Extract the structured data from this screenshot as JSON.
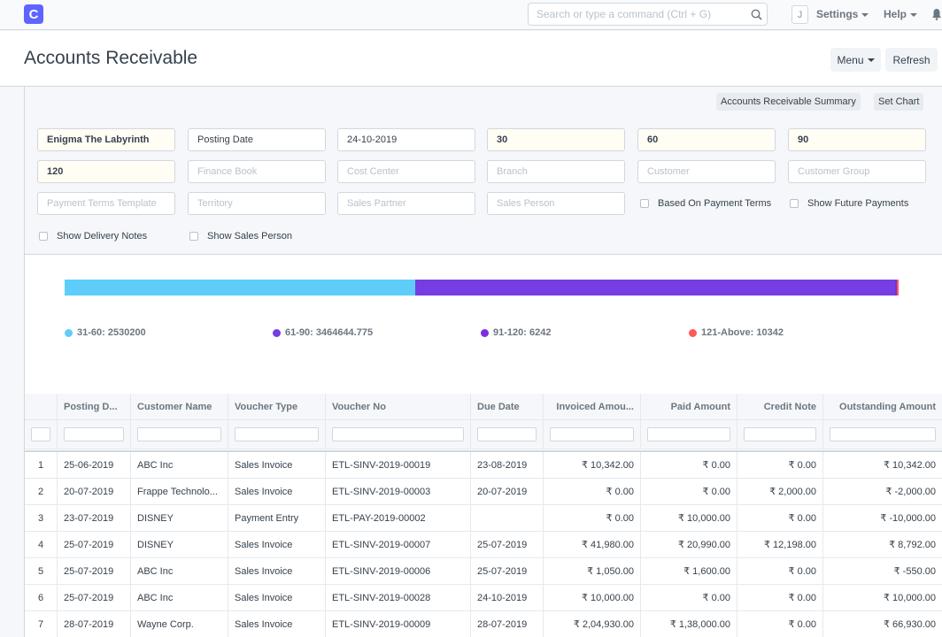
{
  "navbar": {
    "logo_letter": "C",
    "search_placeholder": "Search or type a command (Ctrl + G)",
    "avatar_letter": "J",
    "settings": "Settings",
    "help": "Help"
  },
  "page": {
    "title": "Accounts Receivable",
    "menu_label": "Menu",
    "refresh_label": "Refresh"
  },
  "report_buttons": {
    "summary": "Accounts Receivable Summary",
    "set_chart": "Set Chart"
  },
  "filters": {
    "company": "Enigma The Labyrinth",
    "ageing_based_on": "Posting Date",
    "report_date": "24-10-2019",
    "range1": "30",
    "range2": "60",
    "range3": "90",
    "range4": "120",
    "finance_book": "Finance Book",
    "cost_center": "Cost Center",
    "branch": "Branch",
    "customer": "Customer",
    "customer_group": "Customer Group",
    "payment_terms_template": "Payment Terms Template",
    "territory": "Territory",
    "sales_partner": "Sales Partner",
    "sales_person": "Sales Person",
    "based_on_payment_terms": "Based On Payment Terms",
    "show_future_payments": "Show Future Payments",
    "show_delivery_notes": "Show Delivery Notes",
    "show_sales_person": "Show Sales Person"
  },
  "chart_data": {
    "type": "bar",
    "stacked": true,
    "orientation": "horizontal",
    "categories": [
      "31-60",
      "61-90",
      "91-120",
      "121-Above"
    ],
    "values": [
      2530200,
      3464644.775,
      6242,
      10342
    ],
    "legend_labels": [
      "31-60: 2530200",
      "61-90: 3464644.775",
      "91-120: 6242",
      "121-Above: 10342"
    ],
    "colors": [
      "#5ecdf9",
      "#743ee2",
      "#7b2fe5",
      "#ff5858"
    ],
    "legend_position": "bottom"
  },
  "table": {
    "columns": [
      "Posting D...",
      "Customer Name",
      "Voucher Type",
      "Voucher No",
      "Due Date",
      "Invoiced Amou...",
      "Paid Amount",
      "Credit Note",
      "Outstanding Amount"
    ],
    "rows": [
      [
        "1",
        "25-06-2019",
        "ABC Inc",
        "Sales Invoice",
        "ETL-SINV-2019-00019",
        "23-08-2019",
        "₹ 10,342.00",
        "₹ 0.00",
        "₹ 0.00",
        "₹ 10,342.00"
      ],
      [
        "2",
        "20-07-2019",
        "Frappe Technolo...",
        "Sales Invoice",
        "ETL-SINV-2019-00003",
        "20-07-2019",
        "₹ 0.00",
        "₹ 0.00",
        "₹ 2,000.00",
        "₹ -2,000.00"
      ],
      [
        "3",
        "23-07-2019",
        "DISNEY",
        "Payment Entry",
        "ETL-PAY-2019-00002",
        "",
        "₹ 0.00",
        "₹ 10,000.00",
        "₹ 0.00",
        "₹ -10,000.00"
      ],
      [
        "4",
        "25-07-2019",
        "DISNEY",
        "Sales Invoice",
        "ETL-SINV-2019-00007",
        "25-07-2019",
        "₹ 41,980.00",
        "₹ 20,990.00",
        "₹ 12,198.00",
        "₹ 8,792.00"
      ],
      [
        "5",
        "25-07-2019",
        "ABC Inc",
        "Sales Invoice",
        "ETL-SINV-2019-00006",
        "25-07-2019",
        "₹ 1,050.00",
        "₹ 1,600.00",
        "₹ 0.00",
        "₹ -550.00"
      ],
      [
        "6",
        "25-07-2019",
        "ABC Inc",
        "Sales Invoice",
        "ETL-SINV-2019-00028",
        "24-10-2019",
        "₹ 10,000.00",
        "₹ 0.00",
        "₹ 0.00",
        "₹ 10,000.00"
      ],
      [
        "7",
        "28-07-2019",
        "Wayne Corp.",
        "Sales Invoice",
        "ETL-SINV-2019-00009",
        "28-07-2019",
        "₹ 2,04,930.00",
        "₹ 1,38,000.00",
        "₹ 0.00",
        "₹ 66,930.00"
      ]
    ]
  }
}
